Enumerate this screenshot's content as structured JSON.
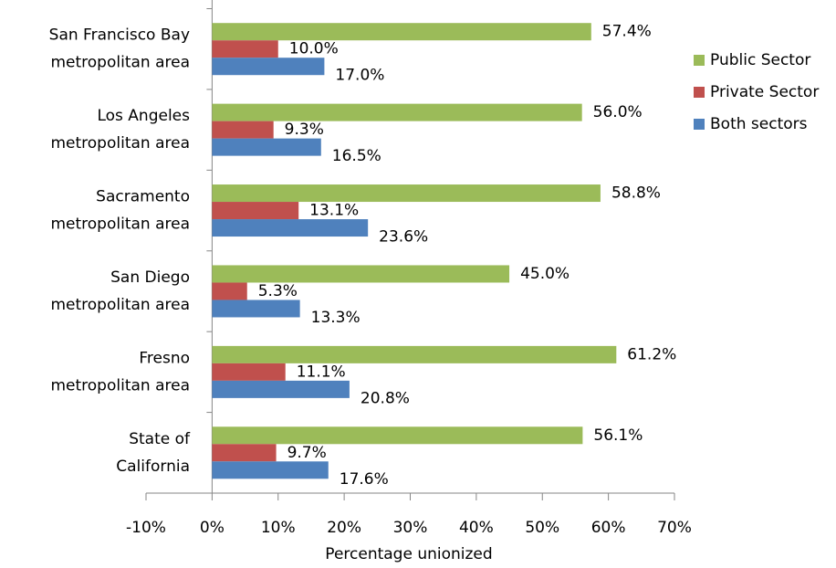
{
  "chart_data": {
    "type": "barh",
    "categories": [
      [
        "San Francisco Bay",
        "metropolitan area"
      ],
      [
        "Los Angeles",
        "metropolitan area"
      ],
      [
        "Sacramento",
        "metropolitan area"
      ],
      [
        "San Diego",
        "metropolitan area"
      ],
      [
        "Fresno",
        "metropolitan area"
      ],
      [
        "State of",
        "California"
      ]
    ],
    "series": [
      {
        "name": "Public Sector",
        "color": "#9bbb59",
        "values": [
          57.4,
          56.0,
          58.8,
          45.0,
          61.2,
          56.1
        ],
        "value_labels": [
          "57.4%",
          "56.0%",
          "58.8%",
          "45.0%",
          "61.2%",
          "56.1%"
        ]
      },
      {
        "name": "Private Sector",
        "color": "#c0504d",
        "values": [
          10.0,
          9.3,
          13.1,
          5.3,
          11.1,
          9.7
        ],
        "value_labels": [
          "10.0%",
          "9.3%",
          "13.1%",
          "5.3%",
          "11.1%",
          "9.7%"
        ]
      },
      {
        "name": "Both sectors",
        "color": "#4f81bd",
        "values": [
          17.0,
          16.5,
          23.6,
          13.3,
          20.8,
          17.6
        ],
        "value_labels": [
          "17.0%",
          "16.5%",
          "23.6%",
          "13.3%",
          "20.8%",
          "17.6%"
        ]
      }
    ],
    "xlabel": "Percentage unionized",
    "xlim": [
      -10,
      70
    ],
    "xticks": [
      {
        "value": -10,
        "label": "-10%"
      },
      {
        "value": 0,
        "label": "0%"
      },
      {
        "value": 10,
        "label": "10%"
      },
      {
        "value": 20,
        "label": "20%"
      },
      {
        "value": 30,
        "label": "30%"
      },
      {
        "value": 40,
        "label": "40%"
      },
      {
        "value": 50,
        "label": "50%"
      },
      {
        "value": 60,
        "label": "60%"
      },
      {
        "value": 70,
        "label": "70%"
      }
    ],
    "legend": "right"
  }
}
